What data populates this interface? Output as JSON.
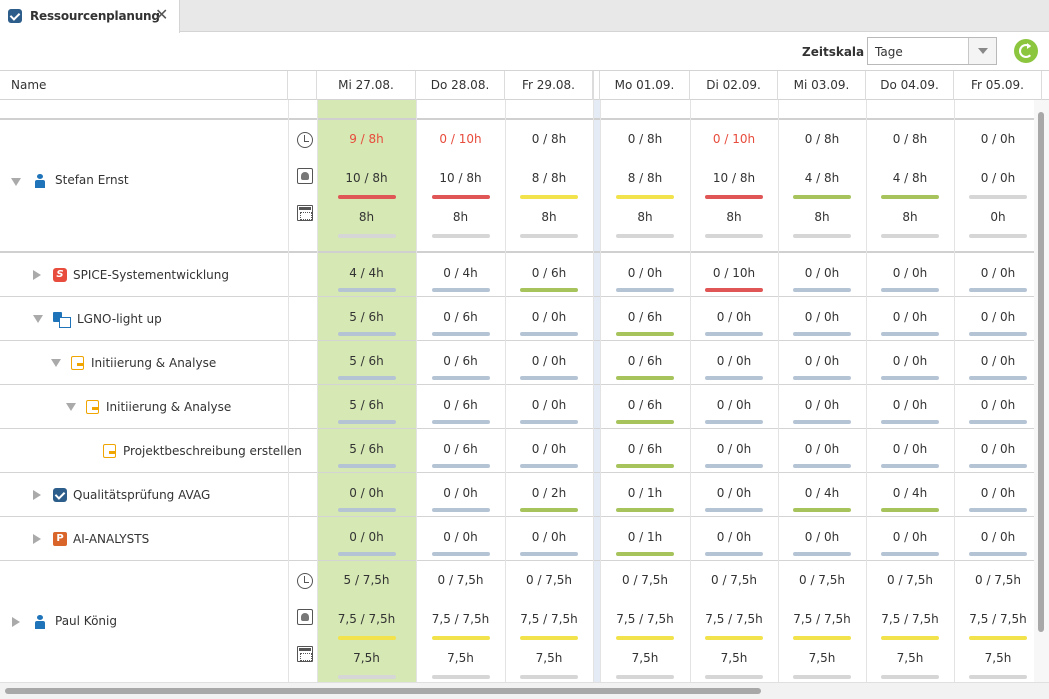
{
  "tab": {
    "title": "Ressourcenplanung"
  },
  "toolbar": {
    "zeitskala_label": "Zeitskala",
    "zeitskala_value": "Tage"
  },
  "header": {
    "name_label": "Name",
    "days": [
      "Mi 27.08.",
      "Do 28.08.",
      "Fr 29.08.",
      "Mo 01.09.",
      "Di 02.09.",
      "Mi 03.09.",
      "Do 04.09.",
      "Fr 05.09."
    ]
  },
  "colors": {
    "red": "#e05555",
    "yellow": "#f2e34c",
    "green": "#a7c45c",
    "blue": "#b5c4d4",
    "gray": "#d6d6d6",
    "today": "#d6e8b4"
  },
  "people": [
    {
      "name": "Stefan Ernst",
      "icon": "person-icon",
      "expanded": true,
      "line1": [
        "9 / 8h",
        "0 / 10h",
        "0 / 8h",
        "0 / 8h",
        "0 / 10h",
        "0 / 8h",
        "0 / 8h",
        "0 / 0h"
      ],
      "line1_red": [
        true,
        true,
        false,
        false,
        true,
        false,
        false,
        false
      ],
      "line2": [
        "10 / 8h",
        "10 / 8h",
        "8 / 8h",
        "8 / 8h",
        "10 / 8h",
        "4 / 8h",
        "4 / 8h",
        "0 / 0h"
      ],
      "line2_bars": [
        "red",
        "red",
        "yellow",
        "yellow",
        "red",
        "green",
        "green",
        "gray"
      ],
      "line3": [
        "8h",
        "8h",
        "8h",
        "8h",
        "8h",
        "8h",
        "8h",
        "0h"
      ]
    },
    {
      "name": "Paul König",
      "icon": "person-icon",
      "expanded": false,
      "line1": [
        "5 / 7,5h",
        "0 / 7,5h",
        "0 / 7,5h",
        "0 / 7,5h",
        "0 / 7,5h",
        "0 / 7,5h",
        "0 / 7,5h",
        "0 / 7,5h"
      ],
      "line1_red": [
        false,
        false,
        false,
        false,
        false,
        false,
        false,
        false
      ],
      "line2": [
        "7,5 / 7,5h",
        "7,5 / 7,5h",
        "7,5 / 7,5h",
        "7,5 / 7,5h",
        "7,5 / 7,5h",
        "7,5 / 7,5h",
        "7,5 / 7,5h",
        "7,5 / 7,5h"
      ],
      "line2_bars": [
        "yellow",
        "yellow",
        "yellow",
        "yellow",
        "yellow",
        "yellow",
        "yellow",
        "yellow"
      ],
      "line3": [
        "7,5h",
        "7,5h",
        "7,5h",
        "7,5h",
        "7,5h",
        "7,5h",
        "7,5h",
        "7,5h"
      ]
    }
  ],
  "projects": [
    {
      "name": "SPICE-Systementwicklung",
      "icon": "spice-icon",
      "toggle": "right",
      "level": 1,
      "values": [
        "4 / 4h",
        "0 / 4h",
        "0 / 6h",
        "0 / 0h",
        "0 / 10h",
        "0 / 0h",
        "0 / 0h",
        "0 / 0h"
      ],
      "bars": [
        "blue",
        "blue",
        "green",
        "blue",
        "red",
        "blue",
        "blue",
        "blue"
      ]
    },
    {
      "name": "LGNO-light up",
      "icon": "project-icon",
      "toggle": "down",
      "level": 1,
      "values": [
        "5 / 6h",
        "0 / 6h",
        "0 / 0h",
        "0 / 6h",
        "0 / 0h",
        "0 / 0h",
        "0 / 0h",
        "0 / 0h"
      ],
      "bars": [
        "blue",
        "blue",
        "blue",
        "green",
        "blue",
        "blue",
        "blue",
        "blue"
      ]
    },
    {
      "name": "Initiierung & Analyse",
      "icon": "task-icon",
      "toggle": "down",
      "level": 2,
      "values": [
        "5 / 6h",
        "0 / 6h",
        "0 / 0h",
        "0 / 6h",
        "0 / 0h",
        "0 / 0h",
        "0 / 0h",
        "0 / 0h"
      ],
      "bars": [
        "blue",
        "blue",
        "blue",
        "green",
        "blue",
        "blue",
        "blue",
        "blue"
      ]
    },
    {
      "name": "Initiierung & Analyse",
      "icon": "task-icon",
      "toggle": "down",
      "level": 3,
      "values": [
        "5 / 6h",
        "0 / 6h",
        "0 / 0h",
        "0 / 6h",
        "0 / 0h",
        "0 / 0h",
        "0 / 0h",
        "0 / 0h"
      ],
      "bars": [
        "blue",
        "blue",
        "blue",
        "green",
        "blue",
        "blue",
        "blue",
        "blue"
      ]
    },
    {
      "name": "Projektbeschreibung erstellen",
      "icon": "task-icon",
      "toggle": "none",
      "level": 4,
      "values": [
        "5 / 6h",
        "0 / 6h",
        "0 / 0h",
        "0 / 6h",
        "0 / 0h",
        "0 / 0h",
        "0 / 0h",
        "0 / 0h"
      ],
      "bars": [
        "blue",
        "blue",
        "blue",
        "green",
        "blue",
        "blue",
        "blue",
        "blue"
      ]
    },
    {
      "name": "Qualitätsprüfung AVAG",
      "icon": "quality-icon",
      "toggle": "right",
      "level": 1,
      "values": [
        "0 / 0h",
        "0 / 0h",
        "0 / 2h",
        "0 / 1h",
        "0 / 0h",
        "0 / 4h",
        "0 / 4h",
        "0 / 0h"
      ],
      "bars": [
        "blue",
        "blue",
        "green",
        "green",
        "blue",
        "green",
        "green",
        "blue"
      ]
    },
    {
      "name": "AI-ANALYSTS",
      "icon": "ai-analysts-icon",
      "toggle": "right",
      "level": 1,
      "values": [
        "0 / 0h",
        "0 / 0h",
        "0 / 0h",
        "0 / 1h",
        "0 / 0h",
        "0 / 0h",
        "0 / 0h",
        "0 / 0h"
      ],
      "bars": [
        "blue",
        "blue",
        "blue",
        "green",
        "blue",
        "blue",
        "blue",
        "blue"
      ]
    }
  ]
}
